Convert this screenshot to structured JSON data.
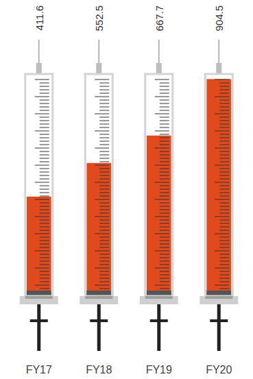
{
  "chart_data": {
    "type": "bar",
    "categories": [
      "FY17",
      "FY18",
      "FY19",
      "FY20"
    ],
    "values": [
      411.6,
      552.5,
      667.7,
      904.5
    ],
    "color": "#e04a1c",
    "ylim": [
      0,
      920
    ],
    "data_labels": true,
    "tick_labels": "x"
  }
}
